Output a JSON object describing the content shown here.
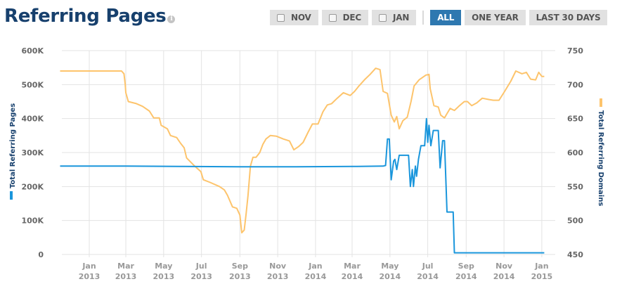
{
  "header": {
    "title": "Referring Pages",
    "info_icon": "info-icon"
  },
  "filters": {
    "checkboxes": [
      {
        "label": "NOV",
        "checked": false
      },
      {
        "label": "DEC",
        "checked": false
      },
      {
        "label": "JAN",
        "checked": false
      }
    ],
    "ranges": [
      {
        "label": "ALL",
        "active": true
      },
      {
        "label": "ONE YEAR",
        "active": false
      },
      {
        "label": "LAST 30 DAYS",
        "active": false
      }
    ]
  },
  "colors": {
    "pages": "#1a96dc",
    "domains": "#fdc46c",
    "title": "#17406d",
    "active_button": "#2e78b0",
    "grid": "#e3e3e3"
  },
  "chart_data": {
    "type": "line",
    "title": "Referring Pages",
    "xlabel": "",
    "grid": true,
    "legend_position": "axis-titles",
    "x_ticks": [
      {
        "month": "Jan",
        "year": "2013"
      },
      {
        "month": "Mar",
        "year": "2013"
      },
      {
        "month": "May",
        "year": "2013"
      },
      {
        "month": "Jul",
        "year": "2013"
      },
      {
        "month": "Sep",
        "year": "2013"
      },
      {
        "month": "Nov",
        "year": "2013"
      },
      {
        "month": "Jan",
        "year": "2014"
      },
      {
        "month": "Mar",
        "year": "2014"
      },
      {
        "month": "May",
        "year": "2014"
      },
      {
        "month": "Jul",
        "year": "2014"
      },
      {
        "month": "Sep",
        "year": "2014"
      },
      {
        "month": "Nov",
        "year": "2014"
      },
      {
        "month": "Jan",
        "year": "2015"
      }
    ],
    "y_left": {
      "label": "Total Referring Pages",
      "ticks": [
        "0",
        "100K",
        "200K",
        "300K",
        "400K",
        "500K",
        "600K"
      ],
      "ylim": [
        0,
        600000
      ]
    },
    "y_right": {
      "label": "Total Referring Domains",
      "ticks": [
        "450",
        "500",
        "550",
        "600",
        "650",
        "700",
        "750"
      ],
      "ylim": [
        450,
        750
      ]
    },
    "x_range_months": [
      "2012-11-15",
      "2015-01-05"
    ],
    "series": [
      {
        "name": "Total Referring Pages",
        "axis": "left",
        "color": "#1a96dc",
        "points": [
          [
            "2012-11-15",
            260000
          ],
          [
            "2013-03-01",
            260000
          ],
          [
            "2013-06-01",
            259000
          ],
          [
            "2013-09-01",
            258000
          ],
          [
            "2013-12-01",
            258000
          ],
          [
            "2014-03-01",
            259000
          ],
          [
            "2014-04-20",
            260000
          ],
          [
            "2014-04-24",
            262000
          ],
          [
            "2014-04-27",
            340000
          ],
          [
            "2014-04-30",
            340000
          ],
          [
            "2014-05-03",
            220000
          ],
          [
            "2014-05-07",
            275000
          ],
          [
            "2014-05-09",
            280000
          ],
          [
            "2014-05-12",
            250000
          ],
          [
            "2014-05-16",
            292000
          ],
          [
            "2014-05-31",
            292000
          ],
          [
            "2014-06-03",
            200000
          ],
          [
            "2014-06-06",
            250000
          ],
          [
            "2014-06-08",
            200000
          ],
          [
            "2014-06-11",
            260000
          ],
          [
            "2014-06-13",
            230000
          ],
          [
            "2014-06-16",
            280000
          ],
          [
            "2014-06-20",
            320000
          ],
          [
            "2014-06-26",
            320000
          ],
          [
            "2014-06-29",
            400000
          ],
          [
            "2014-07-01",
            330000
          ],
          [
            "2014-07-03",
            380000
          ],
          [
            "2014-07-06",
            320000
          ],
          [
            "2014-07-10",
            365000
          ],
          [
            "2014-07-18",
            365000
          ],
          [
            "2014-07-21",
            255000
          ],
          [
            "2014-07-25",
            335000
          ],
          [
            "2014-07-28",
            335000
          ],
          [
            "2014-08-01",
            125000
          ],
          [
            "2014-08-11",
            125000
          ],
          [
            "2014-08-13",
            5000
          ],
          [
            "2015-01-05",
            5000
          ]
        ]
      },
      {
        "name": "Total Referring Domains",
        "axis": "right",
        "color": "#fdc46c",
        "points": [
          [
            "2012-11-15",
            720
          ],
          [
            "2013-02-22",
            720
          ],
          [
            "2013-02-26",
            716
          ],
          [
            "2013-02-28",
            700
          ],
          [
            "2013-03-01",
            688
          ],
          [
            "2013-03-05",
            675
          ],
          [
            "2013-03-18",
            672
          ],
          [
            "2013-03-28",
            668
          ],
          [
            "2013-04-08",
            661
          ],
          [
            "2013-04-15",
            651
          ],
          [
            "2013-04-24",
            651
          ],
          [
            "2013-04-27",
            640
          ],
          [
            "2013-05-07",
            635
          ],
          [
            "2013-05-12",
            625
          ],
          [
            "2013-05-22",
            622
          ],
          [
            "2013-05-28",
            614
          ],
          [
            "2013-06-03",
            607
          ],
          [
            "2013-06-07",
            592
          ],
          [
            "2013-06-20",
            580
          ],
          [
            "2013-06-30",
            572
          ],
          [
            "2013-07-04",
            560
          ],
          [
            "2013-07-15",
            556
          ],
          [
            "2013-07-30",
            550
          ],
          [
            "2013-08-07",
            545
          ],
          [
            "2013-08-12",
            537
          ],
          [
            "2013-08-20",
            520
          ],
          [
            "2013-08-27",
            518
          ],
          [
            "2013-09-01",
            508
          ],
          [
            "2013-09-04",
            482
          ],
          [
            "2013-09-08",
            486
          ],
          [
            "2013-09-11",
            510
          ],
          [
            "2013-09-14",
            536
          ],
          [
            "2013-09-18",
            580
          ],
          [
            "2013-09-22",
            593
          ],
          [
            "2013-09-27",
            593
          ],
          [
            "2013-10-03",
            600
          ],
          [
            "2013-10-08",
            612
          ],
          [
            "2013-10-13",
            620
          ],
          [
            "2013-10-20",
            625
          ],
          [
            "2013-10-30",
            624
          ],
          [
            "2013-11-10",
            620
          ],
          [
            "2013-11-20",
            617
          ],
          [
            "2013-11-27",
            604
          ],
          [
            "2013-12-05",
            609
          ],
          [
            "2013-12-12",
            615
          ],
          [
            "2013-12-20",
            630
          ],
          [
            "2013-12-27",
            642
          ],
          [
            "2014-01-05",
            642
          ],
          [
            "2014-01-13",
            660
          ],
          [
            "2014-01-20",
            670
          ],
          [
            "2014-01-27",
            672
          ],
          [
            "2014-02-05",
            680
          ],
          [
            "2014-02-15",
            688
          ],
          [
            "2014-02-26",
            684
          ],
          [
            "2014-03-05",
            690
          ],
          [
            "2014-03-12",
            698
          ],
          [
            "2014-03-22",
            708
          ],
          [
            "2014-03-30",
            715
          ],
          [
            "2014-04-08",
            724
          ],
          [
            "2014-04-15",
            722
          ],
          [
            "2014-04-20",
            690
          ],
          [
            "2014-04-27",
            687
          ],
          [
            "2014-05-03",
            655
          ],
          [
            "2014-05-08",
            645
          ],
          [
            "2014-05-12",
            653
          ],
          [
            "2014-05-16",
            635
          ],
          [
            "2014-05-22",
            647
          ],
          [
            "2014-05-29",
            652
          ],
          [
            "2014-06-04",
            675
          ],
          [
            "2014-06-09",
            698
          ],
          [
            "2014-06-17",
            707
          ],
          [
            "2014-06-28",
            714
          ],
          [
            "2014-07-03",
            715
          ],
          [
            "2014-07-05",
            694
          ],
          [
            "2014-07-11",
            669
          ],
          [
            "2014-07-18",
            667
          ],
          [
            "2014-07-22",
            655
          ],
          [
            "2014-07-28",
            651
          ],
          [
            "2014-08-06",
            665
          ],
          [
            "2014-08-13",
            662
          ],
          [
            "2014-08-20",
            668
          ],
          [
            "2014-08-29",
            675
          ],
          [
            "2014-09-03",
            675
          ],
          [
            "2014-09-10",
            669
          ],
          [
            "2014-09-18",
            673
          ],
          [
            "2014-09-27",
            680
          ],
          [
            "2014-10-08",
            678
          ],
          [
            "2014-10-15",
            677
          ],
          [
            "2014-10-24",
            677
          ],
          [
            "2014-11-02",
            690
          ],
          [
            "2014-11-12",
            705
          ],
          [
            "2014-11-20",
            720
          ],
          [
            "2014-11-30",
            716
          ],
          [
            "2014-12-07",
            718
          ],
          [
            "2014-12-14",
            708
          ],
          [
            "2014-12-22",
            707
          ],
          [
            "2014-12-27",
            718
          ],
          [
            "2015-01-01",
            712
          ],
          [
            "2015-01-05",
            712
          ]
        ]
      }
    ]
  }
}
